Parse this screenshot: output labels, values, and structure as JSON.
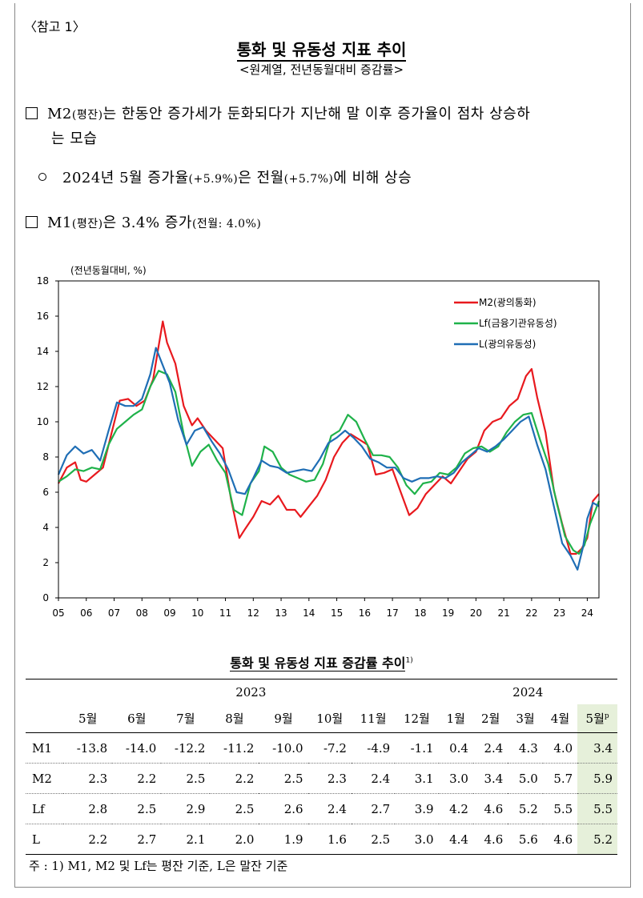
{
  "ref_tag": "〈참고 1〉",
  "title": "통화 및 유동성 지표 추이",
  "subtitle": "<원계열, 전년동월대비 증감률>",
  "bullet1": {
    "pre": "M2",
    "paren": "(평잔)",
    "text": "는 한동안 증가세가 둔화되다가 지난해 말 이후 증가율이 점차 상승하",
    "cont": "는 모습"
  },
  "bullet2": {
    "pre": "2024년 5월 증가율",
    "paren1": "(+5.9%)",
    "mid": "은 전월",
    "paren2": "(+5.7%)",
    "post": "에 비해 상승"
  },
  "bullet3": {
    "pre": "M1",
    "paren": "(평잔)",
    "mid": "은 3.4%  증가",
    "paren2": "(전월: 4.0%)"
  },
  "chart_data": {
    "type": "line",
    "ylabel": "(전년동월대비, %)",
    "ylim": [
      0,
      18
    ],
    "yticks": [
      "0",
      "2",
      "4",
      "6",
      "8",
      "10",
      "12",
      "14",
      "16",
      "18"
    ],
    "xlim": [
      2005.0,
      2024.42
    ],
    "xticks": [
      "05",
      "06",
      "07",
      "08",
      "09",
      "10",
      "11",
      "12",
      "13",
      "14",
      "15",
      "16",
      "17",
      "18",
      "19",
      "20",
      "21",
      "22",
      "23",
      "24"
    ],
    "legend_position": "top-right",
    "series": [
      {
        "name": "M2(광의통화)",
        "color": "#e8191e",
        "points": [
          [
            2005.0,
            6.5
          ],
          [
            2005.3,
            7.4
          ],
          [
            2005.6,
            7.7
          ],
          [
            2005.8,
            6.7
          ],
          [
            2006.0,
            6.6
          ],
          [
            2006.3,
            7.0
          ],
          [
            2006.6,
            7.4
          ],
          [
            2006.9,
            9.3
          ],
          [
            2007.2,
            11.2
          ],
          [
            2007.5,
            11.3
          ],
          [
            2007.8,
            10.9
          ],
          [
            2008.1,
            11.2
          ],
          [
            2008.4,
            12.4
          ],
          [
            2008.6,
            14.3
          ],
          [
            2008.75,
            15.7
          ],
          [
            2008.9,
            14.5
          ],
          [
            2009.2,
            13.3
          ],
          [
            2009.5,
            10.9
          ],
          [
            2009.8,
            9.8
          ],
          [
            2010.0,
            10.2
          ],
          [
            2010.3,
            9.5
          ],
          [
            2010.6,
            9.0
          ],
          [
            2010.9,
            8.5
          ],
          [
            2011.2,
            5.6
          ],
          [
            2011.5,
            3.4
          ],
          [
            2011.7,
            3.9
          ],
          [
            2012.0,
            4.6
          ],
          [
            2012.3,
            5.5
          ],
          [
            2012.6,
            5.3
          ],
          [
            2012.9,
            5.8
          ],
          [
            2013.2,
            5.0
          ],
          [
            2013.5,
            5.0
          ],
          [
            2013.7,
            4.6
          ],
          [
            2014.0,
            5.2
          ],
          [
            2014.3,
            5.8
          ],
          [
            2014.6,
            6.7
          ],
          [
            2014.9,
            8.0
          ],
          [
            2015.2,
            8.8
          ],
          [
            2015.5,
            9.3
          ],
          [
            2015.8,
            9.0
          ],
          [
            2016.1,
            8.7
          ],
          [
            2016.4,
            7.0
          ],
          [
            2016.7,
            7.1
          ],
          [
            2017.0,
            7.3
          ],
          [
            2017.3,
            6.0
          ],
          [
            2017.6,
            4.7
          ],
          [
            2017.9,
            5.1
          ],
          [
            2018.2,
            5.9
          ],
          [
            2018.5,
            6.4
          ],
          [
            2018.8,
            6.9
          ],
          [
            2019.1,
            6.5
          ],
          [
            2019.4,
            7.2
          ],
          [
            2019.7,
            7.9
          ],
          [
            2020.0,
            8.3
          ],
          [
            2020.3,
            9.5
          ],
          [
            2020.6,
            10.0
          ],
          [
            2020.9,
            10.2
          ],
          [
            2021.2,
            10.9
          ],
          [
            2021.5,
            11.3
          ],
          [
            2021.8,
            12.6
          ],
          [
            2022.0,
            13.0
          ],
          [
            2022.2,
            11.4
          ],
          [
            2022.5,
            9.4
          ],
          [
            2022.8,
            6.1
          ],
          [
            2023.1,
            4.2
          ],
          [
            2023.4,
            2.5
          ],
          [
            2023.6,
            2.5
          ],
          [
            2023.8,
            2.8
          ],
          [
            2024.0,
            3.4
          ],
          [
            2024.2,
            5.5
          ],
          [
            2024.42,
            5.9
          ]
        ]
      },
      {
        "name": "Lf(금융기관유동성)",
        "color": "#1fb24a",
        "points": [
          [
            2005.0,
            6.6
          ],
          [
            2005.3,
            6.9
          ],
          [
            2005.6,
            7.3
          ],
          [
            2005.9,
            7.2
          ],
          [
            2006.2,
            7.4
          ],
          [
            2006.5,
            7.3
          ],
          [
            2006.8,
            8.7
          ],
          [
            2007.1,
            9.6
          ],
          [
            2007.4,
            10.0
          ],
          [
            2007.7,
            10.4
          ],
          [
            2008.0,
            10.7
          ],
          [
            2008.3,
            12.0
          ],
          [
            2008.6,
            12.9
          ],
          [
            2008.9,
            12.7
          ],
          [
            2009.2,
            11.7
          ],
          [
            2009.5,
            9.3
          ],
          [
            2009.8,
            7.5
          ],
          [
            2010.1,
            8.3
          ],
          [
            2010.4,
            8.7
          ],
          [
            2010.7,
            7.8
          ],
          [
            2011.0,
            7.1
          ],
          [
            2011.3,
            5.0
          ],
          [
            2011.6,
            4.7
          ],
          [
            2011.9,
            6.5
          ],
          [
            2012.2,
            7.2
          ],
          [
            2012.4,
            8.6
          ],
          [
            2012.7,
            8.3
          ],
          [
            2013.0,
            7.4
          ],
          [
            2013.3,
            7.0
          ],
          [
            2013.6,
            6.8
          ],
          [
            2013.9,
            6.6
          ],
          [
            2014.2,
            6.7
          ],
          [
            2014.5,
            7.6
          ],
          [
            2014.8,
            9.2
          ],
          [
            2015.1,
            9.5
          ],
          [
            2015.4,
            10.4
          ],
          [
            2015.7,
            10.0
          ],
          [
            2016.0,
            9.0
          ],
          [
            2016.3,
            8.1
          ],
          [
            2016.6,
            8.1
          ],
          [
            2016.9,
            8.0
          ],
          [
            2017.2,
            7.4
          ],
          [
            2017.5,
            6.4
          ],
          [
            2017.8,
            5.9
          ],
          [
            2018.1,
            6.5
          ],
          [
            2018.4,
            6.6
          ],
          [
            2018.7,
            7.1
          ],
          [
            2019.0,
            7.0
          ],
          [
            2019.3,
            7.4
          ],
          [
            2019.6,
            8.2
          ],
          [
            2019.9,
            8.5
          ],
          [
            2020.2,
            8.6
          ],
          [
            2020.5,
            8.3
          ],
          [
            2020.8,
            8.6
          ],
          [
            2021.1,
            9.4
          ],
          [
            2021.4,
            10.0
          ],
          [
            2021.7,
            10.4
          ],
          [
            2022.0,
            10.5
          ],
          [
            2022.3,
            9.0
          ],
          [
            2022.6,
            7.6
          ],
          [
            2022.9,
            5.4
          ],
          [
            2023.2,
            3.5
          ],
          [
            2023.5,
            2.7
          ],
          [
            2023.7,
            2.5
          ],
          [
            2023.9,
            3.0
          ],
          [
            2024.1,
            4.2
          ],
          [
            2024.3,
            5.0
          ],
          [
            2024.42,
            5.5
          ]
        ]
      },
      {
        "name": "L(광의유동성)",
        "color": "#1f6eb5",
        "points": [
          [
            2005.0,
            7.0
          ],
          [
            2005.3,
            8.1
          ],
          [
            2005.6,
            8.6
          ],
          [
            2005.9,
            8.2
          ],
          [
            2006.2,
            8.4
          ],
          [
            2006.5,
            7.8
          ],
          [
            2006.8,
            9.5
          ],
          [
            2007.1,
            11.1
          ],
          [
            2007.4,
            10.9
          ],
          [
            2007.7,
            10.9
          ],
          [
            2008.0,
            11.3
          ],
          [
            2008.3,
            12.7
          ],
          [
            2008.5,
            14.2
          ],
          [
            2008.7,
            13.4
          ],
          [
            2009.0,
            12.2
          ],
          [
            2009.3,
            10.1
          ],
          [
            2009.6,
            8.7
          ],
          [
            2009.9,
            9.5
          ],
          [
            2010.2,
            9.7
          ],
          [
            2010.5,
            8.9
          ],
          [
            2010.8,
            8.2
          ],
          [
            2011.1,
            7.3
          ],
          [
            2011.4,
            6.0
          ],
          [
            2011.7,
            5.9
          ],
          [
            2012.0,
            6.8
          ],
          [
            2012.3,
            7.8
          ],
          [
            2012.6,
            7.5
          ],
          [
            2012.9,
            7.4
          ],
          [
            2013.2,
            7.1
          ],
          [
            2013.5,
            7.2
          ],
          [
            2013.8,
            7.3
          ],
          [
            2014.1,
            7.2
          ],
          [
            2014.4,
            7.9
          ],
          [
            2014.7,
            8.8
          ],
          [
            2015.0,
            9.1
          ],
          [
            2015.3,
            9.5
          ],
          [
            2015.6,
            9.1
          ],
          [
            2015.9,
            8.6
          ],
          [
            2016.2,
            7.9
          ],
          [
            2016.5,
            7.7
          ],
          [
            2016.8,
            7.4
          ],
          [
            2017.1,
            7.4
          ],
          [
            2017.4,
            6.8
          ],
          [
            2017.7,
            6.6
          ],
          [
            2018.0,
            6.8
          ],
          [
            2018.3,
            6.8
          ],
          [
            2018.6,
            6.9
          ],
          [
            2018.9,
            6.8
          ],
          [
            2019.2,
            7.1
          ],
          [
            2019.5,
            7.7
          ],
          [
            2019.8,
            8.1
          ],
          [
            2020.1,
            8.5
          ],
          [
            2020.4,
            8.3
          ],
          [
            2020.7,
            8.6
          ],
          [
            2021.0,
            9.0
          ],
          [
            2021.3,
            9.5
          ],
          [
            2021.6,
            10.0
          ],
          [
            2021.9,
            10.3
          ],
          [
            2022.2,
            8.7
          ],
          [
            2022.5,
            7.3
          ],
          [
            2022.8,
            5.2
          ],
          [
            2023.1,
            3.1
          ],
          [
            2023.4,
            2.4
          ],
          [
            2023.65,
            1.6
          ],
          [
            2023.85,
            2.9
          ],
          [
            2024.0,
            4.5
          ],
          [
            2024.2,
            5.4
          ],
          [
            2024.42,
            5.2
          ]
        ]
      }
    ]
  },
  "table": {
    "title": "통화 및 유동성 지표 증감률 추이",
    "title_sup": "1)",
    "year_2023": "2023",
    "year_2024": "2024",
    "months_2023": [
      "5월",
      "6월",
      "7월",
      "8월",
      "9월",
      "10월",
      "11월",
      "12월"
    ],
    "months_2024": [
      "1월",
      "2월",
      "3월",
      "4월"
    ],
    "month_p": "5월",
    "month_p_sup": "p",
    "rows": [
      {
        "label": "M1",
        "v2023": [
          "-13.8",
          "-14.0",
          "-12.2",
          "-11.2",
          "-10.0",
          "-7.2",
          "-4.9",
          "-1.1"
        ],
        "v2024": [
          "0.4",
          "2.4",
          "4.3",
          "4.0"
        ],
        "latest": "3.4"
      },
      {
        "label": "M2",
        "v2023": [
          "2.3",
          "2.2",
          "2.5",
          "2.2",
          "2.5",
          "2.3",
          "2.4",
          "3.1"
        ],
        "v2024": [
          "3.0",
          "3.4",
          "5.0",
          "5.7"
        ],
        "latest": "5.9"
      },
      {
        "label": "Lf",
        "v2023": [
          "2.8",
          "2.5",
          "2.9",
          "2.5",
          "2.6",
          "2.4",
          "2.7",
          "3.9"
        ],
        "v2024": [
          "4.2",
          "4.6",
          "5.2",
          "5.5"
        ],
        "latest": "5.5"
      },
      {
        "label": "L",
        "v2023": [
          "2.2",
          "2.7",
          "2.1",
          "2.0",
          "1.9",
          "1.6",
          "2.5",
          "3.0"
        ],
        "v2024": [
          "4.4",
          "4.6",
          "5.6",
          "4.6"
        ],
        "latest": "5.2"
      }
    ],
    "note": "주 : 1) M1, M2 및 Lf는 평잔 기준, L은 말잔 기준"
  }
}
